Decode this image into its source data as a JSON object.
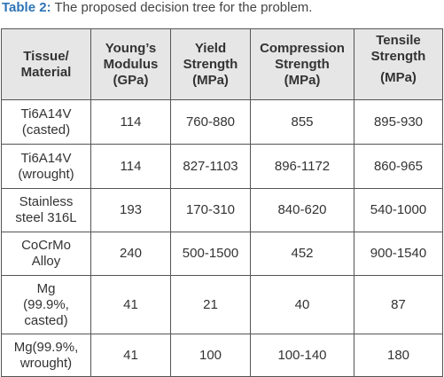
{
  "caption": {
    "label": "Table 2:",
    "text": " The proposed decision tree for the problem."
  },
  "table": {
    "headers": [
      {
        "line1": "Tissue/",
        "line2": "Material"
      },
      {
        "line1": "Young’s",
        "line2": "Modulus",
        "line3": "(GPa)"
      },
      {
        "line1": "Yield",
        "line2": "Strength",
        "line3": "(MPa)"
      },
      {
        "line1": "Compression",
        "line2": "Strength",
        "line3": "(MPa)"
      },
      {
        "line1": "Tensile",
        "line2": "Strength",
        "line3": "(MPa)"
      }
    ],
    "rows": [
      {
        "material": "Ti6A14V\n(casted)",
        "youngs_modulus": "114",
        "yield_strength": "760-880",
        "compression_strength": "855",
        "tensile_strength": "895-930"
      },
      {
        "material": "Ti6A14V\n(wrought)",
        "youngs_modulus": "114",
        "yield_strength": "827-1103",
        "compression_strength": "896-1172",
        "tensile_strength": "860-965"
      },
      {
        "material": "Stainless\nsteel 316L",
        "youngs_modulus": "193",
        "yield_strength": "170-310",
        "compression_strength": "840-620",
        "tensile_strength": "540-1000"
      },
      {
        "material": "CoCrMo\nAlloy",
        "youngs_modulus": "240",
        "yield_strength": "500-1500",
        "compression_strength": "452",
        "tensile_strength": "900-1540"
      },
      {
        "material": "Mg\n(99.9%,\ncasted)",
        "youngs_modulus": "41",
        "yield_strength": "21",
        "compression_strength": "40",
        "tensile_strength": "87"
      },
      {
        "material": "Mg(99.9%,\nwrought)",
        "youngs_modulus": "41",
        "yield_strength": "100",
        "compression_strength": "100-140",
        "tensile_strength": "180"
      }
    ]
  }
}
